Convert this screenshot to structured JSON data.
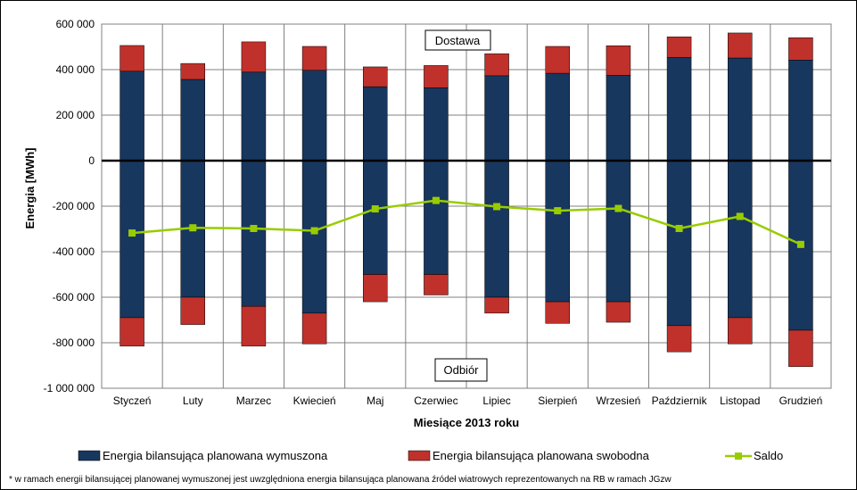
{
  "chart_data": {
    "type": "bar",
    "stacked": true,
    "categories": [
      "Styczeń",
      "Luty",
      "Marzec",
      "Kwiecień",
      "Maj",
      "Czerwiec",
      "Lipiec",
      "Sierpień",
      "Wrzesień",
      "Październik",
      "Listopad",
      "Grudzień"
    ],
    "series": [
      {
        "name": "Energia bilansująca planowana wymuszona",
        "color": "#17375e",
        "positive": [
          393000,
          357000,
          389000,
          397000,
          325000,
          320000,
          373000,
          384000,
          375000,
          454000,
          451000,
          442000
        ],
        "negative": [
          -690000,
          -600000,
          -640000,
          -670000,
          -500000,
          -500000,
          -600000,
          -620000,
          -620000,
          -725000,
          -690000,
          -745000
        ]
      },
      {
        "name": "Energia bilansująca planowana swobodna",
        "color": "#c0312b",
        "positive": [
          113000,
          70000,
          133000,
          105000,
          87000,
          98000,
          97000,
          118000,
          130000,
          90000,
          110000,
          98000
        ],
        "negative": [
          -125000,
          -120000,
          -175000,
          -135000,
          -120000,
          -90000,
          -70000,
          -95000,
          -90000,
          -115000,
          -115000,
          -160000
        ]
      },
      {
        "name": "Saldo",
        "type": "line",
        "color": "#99cc00",
        "values": [
          -318000,
          -295000,
          -298000,
          -308000,
          -212000,
          -175000,
          -202000,
          -220000,
          -210000,
          -298000,
          -245000,
          -368000
        ]
      }
    ],
    "ylabel": "Energia [MWh]",
    "xlabel": "Miesiące 2013  roku",
    "ylim": [
      -1000000,
      600000
    ],
    "yticks": [
      600000,
      400000,
      200000,
      0,
      -200000,
      -400000,
      -600000,
      -800000,
      -1000000
    ],
    "ytick_labels": [
      "600 000",
      "400 000",
      "200 000",
      "0",
      "-200 000",
      "-400 000",
      "-600 000",
      "-800 000",
      "-1 000 000"
    ],
    "annotations": [
      "Dostawa",
      "Odbiór"
    ],
    "legend_position": "bottom",
    "grid": true
  },
  "footnote": "* w ramach energii bilansującej planowanej wymuszonej jest uwzględniona energia bilansująca planowana źródeł wiatrowych reprezentowanych na RB w ramach JGzw"
}
